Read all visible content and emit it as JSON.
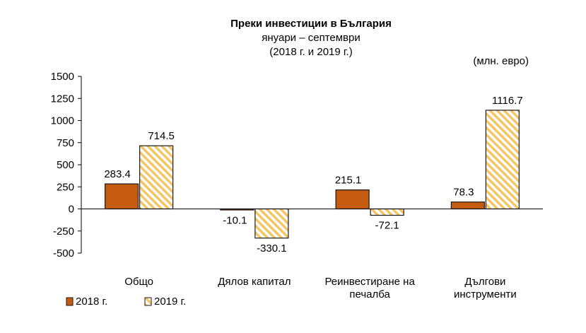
{
  "colors": {
    "series_2018": "#c55a11",
    "series_2019_stripe": "#f6c564",
    "series_2019_bg": "#ffffff",
    "bar_border": "#1a1a1a",
    "axis": "#000000"
  },
  "chart_data": {
    "type": "bar",
    "title": "Преки  инвестиции в България",
    "subtitle_lines": [
      "януари – септември",
      "(2018 г. и 2019 г.)"
    ],
    "unit_label": "(млн. евро)",
    "categories": [
      [
        "Общо"
      ],
      [
        "Дялов капитал"
      ],
      [
        "Реинвестиране на",
        "печалба"
      ],
      [
        "Дългови",
        "инструменти"
      ]
    ],
    "series": [
      {
        "name": "2018 г.",
        "values": [
          283.4,
          -10.1,
          215.1,
          78.3
        ],
        "labels": [
          "283.4",
          "-10.1",
          "215.1",
          "78.3"
        ],
        "pattern": "solid"
      },
      {
        "name": "2019 г.",
        "values": [
          714.5,
          -330.1,
          -72.1,
          1116.7
        ],
        "labels": [
          "714.5",
          "-330.1",
          "-72.1",
          "1116.7"
        ],
        "pattern": "diagonal-stripes"
      }
    ],
    "ylim": [
      -500,
      1500
    ],
    "yticks": [
      1500,
      1250,
      1000,
      750,
      500,
      250,
      0,
      -250,
      -500
    ],
    "grid": false,
    "legend_position": "bottom-left"
  }
}
